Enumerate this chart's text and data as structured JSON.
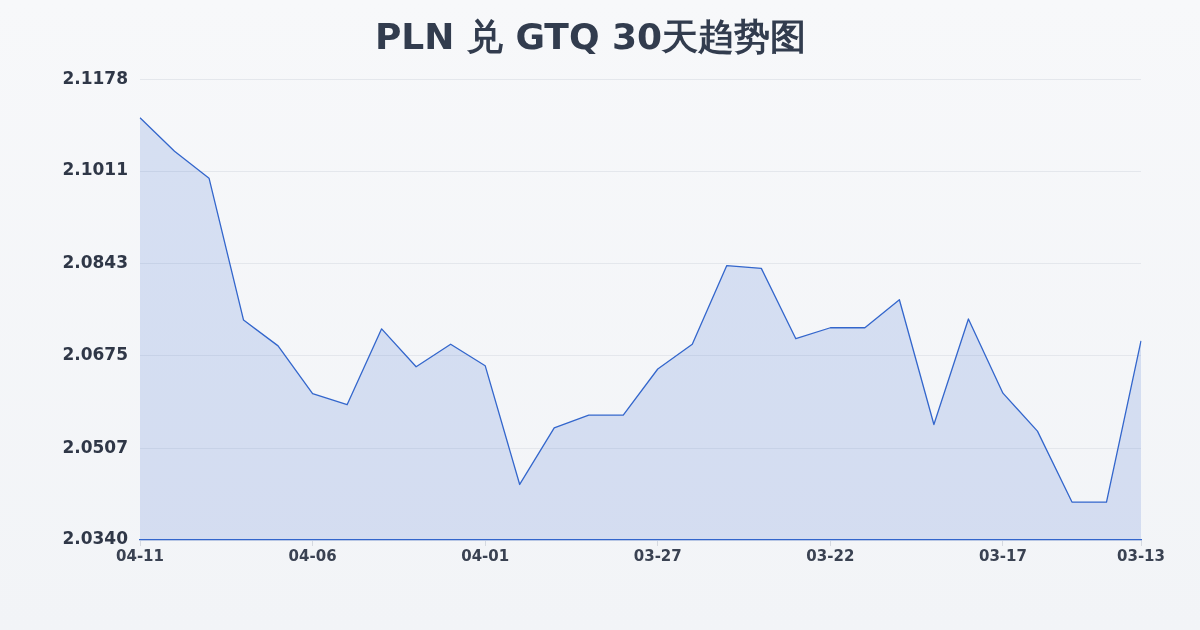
{
  "chart_data": {
    "type": "area",
    "title": "PLN 兑 GTQ 30天趋势图",
    "categories": [
      "04-11",
      null,
      null,
      null,
      null,
      "04-06",
      null,
      null,
      null,
      null,
      "04-01",
      null,
      null,
      null,
      null,
      "03-27",
      null,
      null,
      null,
      null,
      "03-22",
      null,
      null,
      null,
      null,
      "03-17",
      null,
      null,
      null,
      "03-13"
    ],
    "series": [
      {
        "color": "#3366cc",
        "values": [
          2.1108,
          2.1047,
          2.0998,
          2.074,
          2.0693,
          2.0606,
          2.0586,
          2.0724,
          2.0655,
          2.0696,
          2.0657,
          2.0441,
          2.0544,
          2.0567,
          2.0567,
          2.0651,
          2.0696,
          2.0839,
          2.0834,
          2.0706,
          2.0726,
          2.0726,
          2.0777,
          2.055,
          2.0742,
          2.0607,
          2.0538,
          2.0409,
          2.0409,
          2.0702
        ]
      }
    ],
    "ylim": [
      2.034,
      2.1178
    ],
    "yticks": [
      {
        "value": 2.034,
        "label": "2.0340"
      },
      2.0507,
      2.0675,
      2.0843,
      2.1011,
      2.1178
    ],
    "grid": "y",
    "marker": "none",
    "line_style": "solid"
  }
}
